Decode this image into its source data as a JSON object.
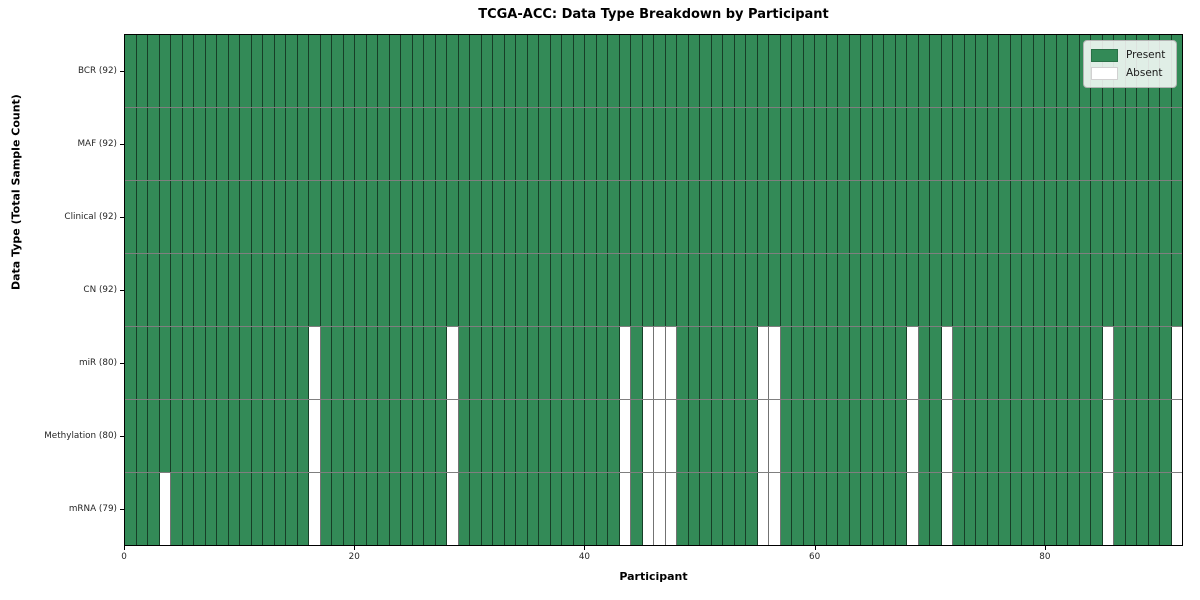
{
  "chart_data": {
    "type": "heatmap",
    "title": "TCGA-ACC: Data Type Breakdown by Participant",
    "xlabel": "Participant",
    "ylabel": "Data Type (Total Sample Count)",
    "n_participants": 92,
    "x_ticks": [
      0,
      20,
      40,
      60,
      80
    ],
    "grid": true,
    "colors": {
      "present": "#338a57",
      "absent": "#ffffff",
      "cell_edge": "rgba(0,0,0,0.55)",
      "row_edge": "rgba(0,0,0,0.5)",
      "plot_border": "#000000"
    },
    "legend": {
      "position": "upper-right",
      "entries": [
        {
          "label": "Present",
          "color": "#338a57"
        },
        {
          "label": "Absent",
          "color": "#ffffff"
        }
      ]
    },
    "rows": [
      {
        "label": "BCR (92)",
        "data_type": "BCR",
        "total": 92,
        "absent_participants": []
      },
      {
        "label": "MAF (92)",
        "data_type": "MAF",
        "total": 92,
        "absent_participants": []
      },
      {
        "label": "Clinical (92)",
        "data_type": "Clinical",
        "total": 92,
        "absent_participants": []
      },
      {
        "label": "CN (92)",
        "data_type": "CN",
        "total": 92,
        "absent_participants": []
      },
      {
        "label": "miR (80)",
        "data_type": "miR",
        "total": 80,
        "absent_participants": [
          16,
          28,
          43,
          45,
          46,
          47,
          55,
          56,
          68,
          71,
          85,
          91
        ]
      },
      {
        "label": "Methylation (80)",
        "data_type": "Methylation",
        "total": 80,
        "absent_participants": [
          16,
          28,
          43,
          45,
          46,
          47,
          55,
          56,
          68,
          71,
          85,
          91
        ]
      },
      {
        "label": "mRNA (79)",
        "data_type": "mRNA",
        "total": 79,
        "absent_participants": [
          3,
          16,
          28,
          43,
          45,
          46,
          47,
          55,
          56,
          68,
          71,
          85,
          91
        ]
      }
    ]
  }
}
